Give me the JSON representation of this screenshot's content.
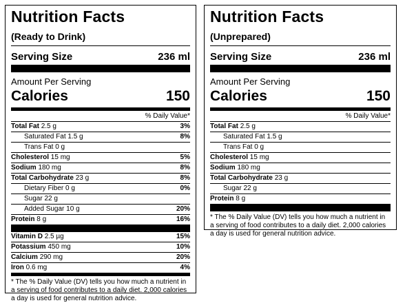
{
  "left": {
    "title": "Nutrition Facts",
    "subtitle": "(Ready to Drink)",
    "serving_label": "Serving Size",
    "serving_value": "236 ml",
    "amount_per_serving": "Amount Per Serving",
    "calories_label": "Calories",
    "calories_value": "150",
    "dv_header": "% Daily Value*",
    "nutrients": [
      {
        "name": "Total Fat",
        "amount": "2.5 g",
        "dv": "3%"
      },
      {
        "name": "Saturated Fat",
        "amount": "1.5 g",
        "dv": "8%"
      },
      {
        "name": "Trans Fat",
        "amount": "0 g",
        "dv": ""
      },
      {
        "name": "Cholesterol",
        "amount": "15 mg",
        "dv": "5%"
      },
      {
        "name": "Sodium",
        "amount": "180 mg",
        "dv": "8%"
      },
      {
        "name": "Total Carbohydrate",
        "amount": "23 g",
        "dv": "8%"
      },
      {
        "name": "Dietary Fiber",
        "amount": "0 g",
        "dv": "0%"
      },
      {
        "name": "Sugar",
        "amount": "22 g",
        "dv": ""
      },
      {
        "name": "Added Sugar",
        "amount": "10 g",
        "dv": "20%"
      },
      {
        "name": "Protein",
        "amount": "8 g",
        "dv": "16%"
      }
    ],
    "vitamins": [
      {
        "name": "Vitamin D",
        "amount": "2.5 µg",
        "dv": "15%"
      },
      {
        "name": "Potassium",
        "amount": "450 mg",
        "dv": "10%"
      },
      {
        "name": "Calcium",
        "amount": "290 mg",
        "dv": "20%"
      },
      {
        "name": "Iron",
        "amount": "0.6 mg",
        "dv": "4%"
      }
    ],
    "footnote": "* The % Daily Value (DV) tells you how much a nutrient in a serving of food contributes to a daily diet. 2,000 calories a day is used for general nutrition advice."
  },
  "right": {
    "title": "Nutrition Facts",
    "subtitle": "(Unprepared)",
    "serving_label": "Serving Size",
    "serving_value": "236 ml",
    "amount_per_serving": "Amount Per Serving",
    "calories_label": "Calories",
    "calories_value": "150",
    "dv_header": "% Daily Value*",
    "nutrients": [
      {
        "name": "Total Fat",
        "amount": "2.5 g"
      },
      {
        "name": "Saturated Fat",
        "amount": "1.5 g"
      },
      {
        "name": "Trans Fat",
        "amount": "0 g"
      },
      {
        "name": "Cholesterol",
        "amount": "15 mg"
      },
      {
        "name": "Sodium",
        "amount": "180 mg"
      },
      {
        "name": "Total Carbohydrate",
        "amount": "23 g"
      },
      {
        "name": "Sugar",
        "amount": "22 g"
      },
      {
        "name": "Protein",
        "amount": "8 g"
      }
    ],
    "footnote": "* The % Daily Value (DV) tells you how much a nutrient in a serving of food contributes to a daily diet. 2,000 calories a day is used for general nutrition advice."
  }
}
